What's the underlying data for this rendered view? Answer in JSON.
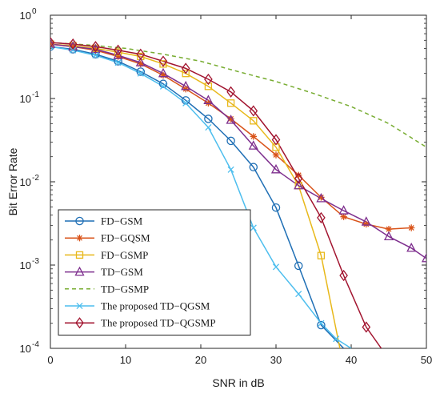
{
  "chart_data": {
    "type": "line",
    "xlabel": "SNR in dB",
    "ylabel": "Bit Error Rate",
    "xlim": [
      0,
      50
    ],
    "ylim": [
      0.0001,
      1
    ],
    "yscale": "log",
    "grid": false,
    "legend_position": "bottom-left",
    "x_ticks": [
      {
        "value": 0,
        "label": "0"
      },
      {
        "value": 10,
        "label": "10"
      },
      {
        "value": 20,
        "label": "20"
      },
      {
        "value": 30,
        "label": "30"
      },
      {
        "value": 40,
        "label": "40"
      },
      {
        "value": 50,
        "label": "50"
      }
    ],
    "y_ticks": [
      {
        "value": 1,
        "base": "10",
        "exp": "0"
      },
      {
        "value": 0.1,
        "base": "10",
        "exp": "-1"
      },
      {
        "value": 0.01,
        "base": "10",
        "exp": "-2"
      },
      {
        "value": 0.001,
        "base": "10",
        "exp": "-3"
      },
      {
        "value": 0.0001,
        "base": "10",
        "exp": "-4"
      }
    ],
    "series": [
      {
        "name": "FD−GSM",
        "color": "#1f6fb5",
        "marker": "circle",
        "dash": "solid",
        "x": [
          0,
          3,
          6,
          9,
          12,
          15,
          18,
          21,
          24,
          27,
          30,
          33,
          36,
          39
        ],
        "y": [
          0.42,
          0.39,
          0.34,
          0.28,
          0.21,
          0.15,
          0.095,
          0.057,
          0.031,
          0.015,
          0.0049,
          0.00098,
          0.00019,
          0.0001
        ]
      },
      {
        "name": "FD−GQSM",
        "color": "#d95319",
        "marker": "star",
        "dash": "solid",
        "x": [
          0,
          3,
          6,
          9,
          12,
          15,
          18,
          21,
          24,
          27,
          30,
          33,
          36,
          39,
          42,
          45,
          48
        ],
        "y": [
          0.45,
          0.42,
          0.38,
          0.32,
          0.26,
          0.19,
          0.13,
          0.088,
          0.057,
          0.035,
          0.021,
          0.012,
          0.0065,
          0.0038,
          0.0031,
          0.0027,
          0.0028
        ]
      },
      {
        "name": "FD−GSMP",
        "color": "#e8b81a",
        "marker": "square",
        "dash": "solid",
        "x": [
          0,
          3,
          6,
          9,
          12,
          15,
          18,
          21,
          24,
          27,
          30,
          33,
          36,
          38.5
        ],
        "y": [
          0.45,
          0.43,
          0.4,
          0.36,
          0.32,
          0.26,
          0.2,
          0.14,
          0.088,
          0.054,
          0.026,
          0.009,
          0.0013,
          0.0001
        ]
      },
      {
        "name": "TD−GSM",
        "color": "#7e2f8e",
        "marker": "triangle",
        "dash": "solid",
        "x": [
          0,
          3,
          6,
          9,
          12,
          15,
          18,
          21,
          24,
          27,
          30,
          33,
          36,
          39,
          42,
          45,
          48,
          50
        ],
        "y": [
          0.45,
          0.42,
          0.39,
          0.33,
          0.27,
          0.2,
          0.14,
          0.095,
          0.055,
          0.027,
          0.014,
          0.009,
          0.0063,
          0.0045,
          0.0033,
          0.0022,
          0.0016,
          0.0012
        ]
      },
      {
        "name": "TD−GSMP",
        "color": "#77ac30",
        "marker": "none",
        "dash": "dashed",
        "x": [
          0,
          5,
          10,
          15,
          20,
          25,
          30,
          35,
          40,
          45,
          50
        ],
        "y": [
          0.47,
          0.44,
          0.4,
          0.34,
          0.28,
          0.21,
          0.16,
          0.115,
          0.08,
          0.05,
          0.026
        ]
      },
      {
        "name": "The proposed TD−QGSM",
        "color": "#4dbeee",
        "marker": "x",
        "dash": "solid",
        "x": [
          0,
          3,
          6,
          9,
          12,
          15,
          18,
          21,
          24,
          27,
          30,
          33,
          36,
          38,
          40
        ],
        "y": [
          0.42,
          0.38,
          0.33,
          0.27,
          0.2,
          0.14,
          0.088,
          0.045,
          0.014,
          0.0028,
          0.00095,
          0.00045,
          0.0002,
          0.00013,
          0.0001
        ]
      },
      {
        "name": "The proposed TD−QGSMP",
        "color": "#a2142f",
        "marker": "diamond",
        "dash": "solid",
        "x": [
          0,
          3,
          6,
          9,
          12,
          15,
          18,
          21,
          24,
          27,
          30,
          33,
          36,
          39,
          42,
          44
        ],
        "y": [
          0.47,
          0.45,
          0.42,
          0.38,
          0.34,
          0.28,
          0.23,
          0.17,
          0.12,
          0.071,
          0.032,
          0.011,
          0.0037,
          0.00075,
          0.00018,
          0.0001
        ]
      }
    ]
  }
}
